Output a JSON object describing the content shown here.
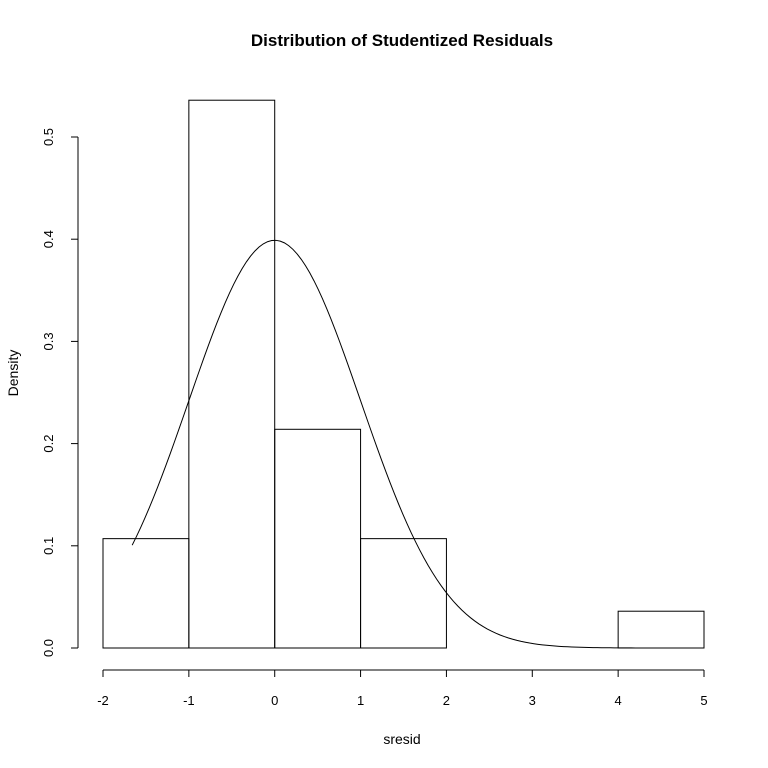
{
  "chart_data": {
    "type": "histogram",
    "title": "Distribution of Studentized Residuals",
    "xlabel": "sresid",
    "ylabel": "Density",
    "xlim": [
      -2,
      5
    ],
    "ylim": [
      0,
      0.55
    ],
    "x_ticks": [
      "-2",
      "-1",
      "0",
      "1",
      "2",
      "3",
      "4",
      "5"
    ],
    "y_ticks": [
      "0.0",
      "0.1",
      "0.2",
      "0.3",
      "0.4",
      "0.5"
    ],
    "bins": [
      {
        "left": -2,
        "right": -1,
        "density": 0.107
      },
      {
        "left": -1,
        "right": 0,
        "density": 0.536
      },
      {
        "left": 0,
        "right": 1,
        "density": 0.214
      },
      {
        "left": 1,
        "right": 2,
        "density": 0.107
      },
      {
        "left": 2,
        "right": 3,
        "density": 0.0
      },
      {
        "left": 3,
        "right": 4,
        "density": 0.0
      },
      {
        "left": 4,
        "right": 5,
        "density": 0.036
      }
    ],
    "curve": {
      "name": "Normal density",
      "mean": 0,
      "sd": 1,
      "x_range": [
        -1.66,
        4.25
      ]
    },
    "grid": false,
    "legend": "none"
  }
}
